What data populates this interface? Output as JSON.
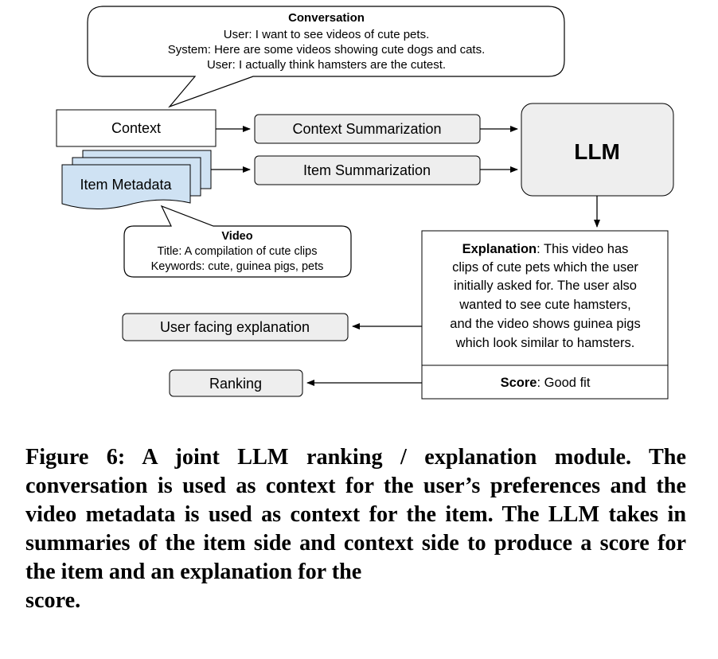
{
  "conversation": {
    "title": "Conversation",
    "lines": [
      "User: I want to see videos of cute pets.",
      "System: Here are some videos showing cute dogs and cats.",
      "User: I actually think hamsters are the cutest."
    ]
  },
  "context_label": "Context",
  "item_metadata_label": "Item Metadata",
  "context_summarization_label": "Context Summarization",
  "item_summarization_label": "Item Summarization",
  "llm_label": "LLM",
  "video": {
    "title": "Video",
    "lines": [
      "Title: A compilation of cute clips",
      "Keywords: cute, guinea pigs, pets"
    ]
  },
  "explanation": {
    "heading": "Explanation",
    "lines": [
      ": This video has",
      "clips of cute pets which the user",
      "initially asked for. The user also",
      "wanted to see cute hamsters,",
      "and the video shows guinea pigs",
      "which look similar to hamsters."
    ]
  },
  "score": {
    "heading": "Score",
    "value": ": Good fit"
  },
  "user_facing_label": "User facing explanation",
  "ranking_label": "Ranking",
  "caption": {
    "main": "Figure 6: A joint LLM ranking / explanation module. The conversation is used as context for the user’s preferences and the video metadata is used as context for the item. The LLM takes in summaries of the item side and context side to produce a score for the item and an explanation for the",
    "last": "score."
  },
  "colors": {
    "grey_box": "#eeeeee",
    "metadata_fill": "#cfe2f3",
    "stroke": "#000000"
  }
}
